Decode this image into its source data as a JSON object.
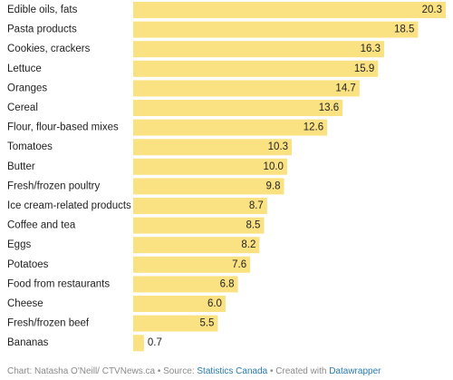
{
  "chart_data": {
    "type": "bar",
    "orientation": "horizontal",
    "categories": [
      "Edible oils, fats",
      "Pasta products",
      "Cookies, crackers",
      "Lettuce",
      "Oranges",
      "Cereal",
      "Flour, flour-based mixes",
      "Tomatoes",
      "Butter",
      "Fresh/frozen poultry",
      "Ice cream-related products",
      "Coffee and tea",
      "Eggs",
      "Potatoes",
      "Food from restaurants",
      "Cheese",
      "Fresh/frozen beef",
      "Bananas"
    ],
    "values": [
      20.3,
      18.5,
      16.3,
      15.9,
      14.7,
      13.6,
      12.6,
      10.3,
      10.0,
      9.8,
      8.7,
      8.5,
      8.2,
      7.6,
      6.8,
      6.0,
      5.5,
      0.7
    ],
    "value_labels": [
      "20.3",
      "18.5",
      "16.3",
      "15.9",
      "14.7",
      "13.6",
      "12.6",
      "10.3",
      "10.0",
      "9.8",
      "8.7",
      "8.5",
      "8.2",
      "7.6",
      "6.8",
      "6.0",
      "5.5",
      "0.7"
    ],
    "xlim": [
      0,
      20.3
    ],
    "grid": false,
    "bar_color": "#fae283"
  },
  "footer": {
    "chart_credit": "Chart: Natasha O'Neill/ CTVNews.ca",
    "separator_1": " • Source: ",
    "source_link": "Statistics Canada",
    "separator_2": " • Created with ",
    "tool_link": "Datawrapper"
  }
}
